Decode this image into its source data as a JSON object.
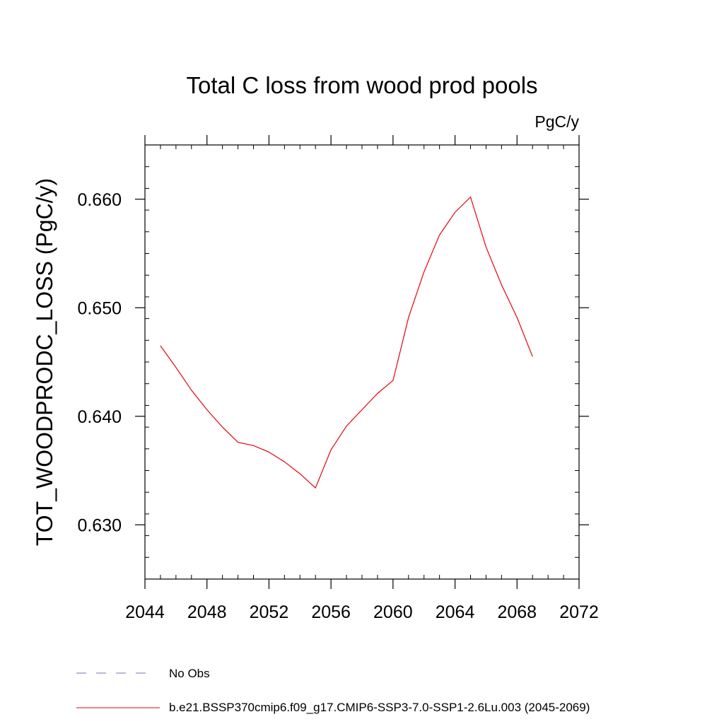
{
  "chart_data": {
    "type": "line",
    "title": "Total C loss from wood prod pools",
    "units": "PgC/y",
    "ylabel": "TOT_WOODPRODC_LOSS  (PgC/y)",
    "xlabel": "",
    "xlim": [
      2044,
      2072
    ],
    "ylim": [
      0.625,
      0.665
    ],
    "x_ticks": [
      2044,
      2048,
      2052,
      2056,
      2060,
      2064,
      2068,
      2072
    ],
    "x_tick_labels": [
      "2044",
      "2048",
      "2052",
      "2056",
      "2060",
      "2064",
      "2068",
      "2072"
    ],
    "y_ticks": [
      0.63,
      0.64,
      0.65,
      0.66
    ],
    "y_tick_labels": [
      "0.630",
      "0.640",
      "0.650",
      "0.660"
    ],
    "grid": false,
    "legend_placement": "bottom",
    "series": [
      {
        "name": "b.e21.BSSP370cmip6.f09_g17.CMIP6-SSP3-7.0-SSP1-2.6Lu.003 (2045-2069)",
        "color": "#e8000b",
        "style": "solid",
        "x": [
          2045,
          2046,
          2047,
          2048,
          2049,
          2050,
          2051,
          2052,
          2053,
          2054,
          2055,
          2056,
          2057,
          2058,
          2059,
          2060,
          2061,
          2062,
          2063,
          2064,
          2065,
          2066,
          2067,
          2068,
          2069
        ],
        "y": [
          0.6465,
          0.6445,
          0.6424,
          0.6406,
          0.639,
          0.6376,
          0.6373,
          0.6367,
          0.6358,
          0.6347,
          0.6334,
          0.6369,
          0.6391,
          0.6406,
          0.6421,
          0.6433,
          0.6491,
          0.6533,
          0.6567,
          0.6588,
          0.6602,
          0.6556,
          0.6521,
          0.6491,
          0.6455
        ]
      },
      {
        "name": "No Obs",
        "color": "#7a6fb0",
        "style": "dashed",
        "x": [],
        "y": []
      }
    ]
  }
}
